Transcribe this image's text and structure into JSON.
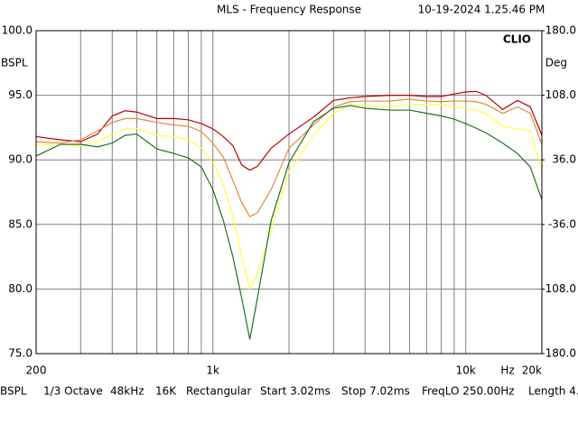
{
  "chart_data": {
    "type": "line",
    "title": "MLS - Frequency Response",
    "timestamp": "10-19-2024 1.25.46 PM",
    "brand": "CLIO",
    "y_label": "BSPL",
    "y2_label": "Deg",
    "x_unit": "Hz",
    "log_x": true,
    "grid": true,
    "xlim": [
      200,
      20000
    ],
    "xticks": [
      {
        "value": 200,
        "label": "200"
      },
      {
        "value": 1000,
        "label": "1k"
      },
      {
        "value": 10000,
        "label": "10k"
      },
      {
        "value": 20000,
        "label": "20k"
      }
    ],
    "xgrid": [
      300,
      400,
      500,
      600,
      700,
      800,
      900,
      1000,
      2000,
      3000,
      4000,
      5000,
      6000,
      7000,
      8000,
      9000,
      10000
    ],
    "ylim": [
      75,
      100
    ],
    "yticks": [
      {
        "value": 100,
        "label": "100.0"
      },
      {
        "value": 95,
        "label": "95.0"
      },
      {
        "value": 90,
        "label": "90.0"
      },
      {
        "value": 85,
        "label": "85.0"
      },
      {
        "value": 80,
        "label": "80.0"
      },
      {
        "value": 75,
        "label": "75.0"
      }
    ],
    "y2lim": [
      -180,
      180
    ],
    "y2ticks": [
      {
        "value": 180,
        "label": "180.0"
      },
      {
        "value": 108,
        "label": "108.0"
      },
      {
        "value": 36,
        "label": "36.0"
      },
      {
        "value": -36,
        "label": "-36.0"
      },
      {
        "value": -108,
        "label": "-108.0"
      },
      {
        "value": -180,
        "label": "-180.0"
      }
    ],
    "x": [
      200,
      250,
      300,
      350,
      400,
      450,
      500,
      600,
      700,
      800,
      900,
      1000,
      1100,
      1200,
      1300,
      1400,
      1500,
      1700,
      2000,
      2500,
      3000,
      3500,
      4000,
      5000,
      6000,
      7000,
      8000,
      9000,
      10000,
      11000,
      12000,
      14000,
      16000,
      18000,
      20000
    ],
    "series": [
      {
        "color": "#c00000",
        "values": [
          91.8,
          91.55,
          91.4,
          92.0,
          93.4,
          93.8,
          93.7,
          93.2,
          93.2,
          93.1,
          92.8,
          92.4,
          91.8,
          91.1,
          89.6,
          89.2,
          89.5,
          90.9,
          92.0,
          93.3,
          94.6,
          94.8,
          94.9,
          95.0,
          95.0,
          94.9,
          94.9,
          95.1,
          95.25,
          95.3,
          95.0,
          93.9,
          94.6,
          94.1,
          91.9
        ]
      },
      {
        "color": "#e08a3c",
        "values": [
          91.4,
          91.3,
          91.55,
          92.25,
          92.9,
          93.2,
          93.2,
          92.9,
          92.7,
          92.6,
          92.2,
          91.3,
          90.2,
          88.4,
          86.7,
          85.6,
          85.9,
          87.7,
          90.9,
          92.7,
          94.1,
          94.5,
          94.55,
          94.55,
          94.7,
          94.55,
          94.5,
          94.55,
          94.55,
          94.5,
          94.3,
          93.6,
          94.1,
          93.6,
          91.2
        ]
      },
      {
        "color": "#ffff40",
        "values": [
          91.2,
          91.2,
          91.1,
          91.4,
          92.0,
          92.4,
          92.4,
          91.9,
          91.8,
          91.55,
          90.9,
          89.8,
          88.1,
          85.6,
          82.5,
          80.0,
          81.1,
          84.6,
          89.1,
          91.9,
          93.6,
          94.3,
          94.2,
          94.1,
          94.3,
          94.3,
          94.3,
          94.1,
          94.0,
          93.85,
          93.6,
          92.6,
          92.4,
          92.25,
          89.2
        ]
      },
      {
        "color": "#207020",
        "values": [
          90.3,
          91.2,
          91.2,
          91.0,
          91.3,
          91.9,
          92.0,
          90.85,
          90.5,
          90.15,
          89.45,
          87.7,
          85.3,
          82.5,
          79.3,
          76.1,
          79.3,
          85.3,
          89.8,
          92.95,
          94.0,
          94.2,
          94.0,
          93.85,
          93.85,
          93.6,
          93.4,
          93.15,
          92.8,
          92.45,
          92.1,
          91.3,
          90.5,
          89.45,
          86.9
        ]
      }
    ],
    "status_bar": [
      "BSPL",
      "1/3 Octave",
      "48kHz",
      "16K",
      "Rectangular",
      "Start 3.02ms",
      "Stop 7.02ms",
      "FreqLO 250.00Hz",
      "Length 4."
    ]
  }
}
